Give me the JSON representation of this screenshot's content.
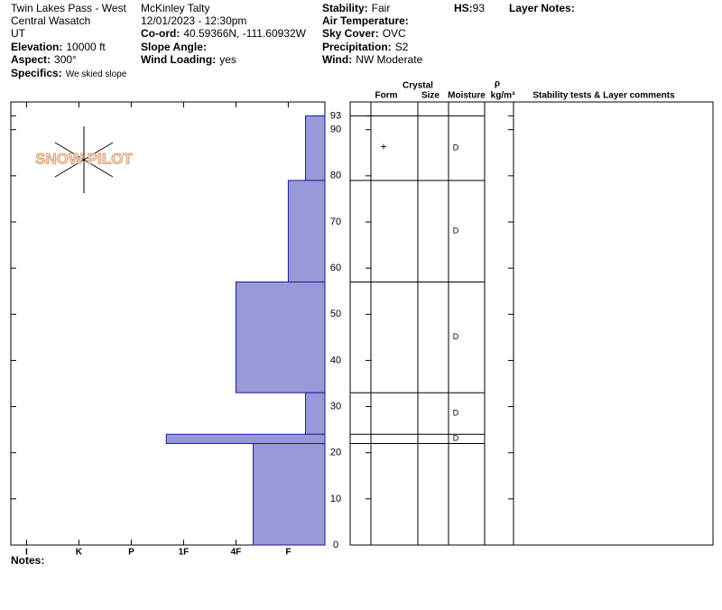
{
  "header": {
    "fields": [
      {
        "value": "Twin Lakes Pass - West"
      },
      {
        "value": "Central Wasatch"
      },
      {
        "value": "UT"
      },
      {
        "label": "Elevation:",
        "value": "10000 ft"
      },
      {
        "label": "Aspect:",
        "value": "300°"
      },
      {
        "label": "Specifics:",
        "value": "We skied slope"
      },
      {
        "value": "McKinley Talty"
      },
      {
        "value": "12/01/2023 - 12:30pm"
      },
      {
        "label": "Co-ord:",
        "value": "40.59366N, -111.60932W"
      },
      {
        "label": "Slope Angle:"
      },
      {
        "label": "Wind Loading:",
        "value": "yes"
      },
      {
        "label": "Stability:",
        "value": "Fair"
      },
      {
        "label": "Air Temperature:"
      },
      {
        "label": "Sky Cover:",
        "value": "OVC"
      },
      {
        "label": "Precipitation:",
        "value": "S2"
      },
      {
        "label": "Wind:",
        "value": "NW Moderate"
      },
      {
        "label": "HS:",
        "value": "93"
      },
      {
        "label": "Layer Notes:"
      },
      {
        "label": "Notes:"
      }
    ],
    "logo": "SNOW PILOT"
  },
  "table": {
    "headers": [
      "Crystal",
      "Form",
      "Size",
      "Moisture",
      "ρ",
      "kg/m³",
      "Stability tests & Layer comments"
    ]
  },
  "chart_data": {
    "type": "bar",
    "orientation": "horizontal",
    "color": "#9999d8",
    "edge_color": "#1a1aa0",
    "layer_tops": [
      93,
      79,
      57,
      33,
      24,
      22
    ],
    "layer_bottoms": [
      79,
      57,
      33,
      24,
      22,
      0
    ],
    "values": [
      0.67,
      1,
      2,
      0.67,
      3.33,
      1.67
    ],
    "forms": [
      "+",
      null,
      null,
      null,
      null,
      null
    ],
    "moisture": [
      "D",
      "D",
      "D",
      "D",
      "D",
      null
    ],
    "xlim": [
      6.3,
      0.3
    ],
    "xticks": [
      {
        "value": 6,
        "label": "I"
      },
      {
        "value": 5,
        "label": "K"
      },
      {
        "value": 4,
        "label": "P"
      },
      {
        "value": 3,
        "label": "1F"
      },
      {
        "value": 2,
        "label": "4F"
      },
      {
        "value": 1,
        "label": "F"
      }
    ],
    "ylim": [
      0,
      96
    ],
    "yticks": [
      0,
      10,
      20,
      30,
      40,
      50,
      60,
      70,
      80,
      90,
      93
    ]
  }
}
